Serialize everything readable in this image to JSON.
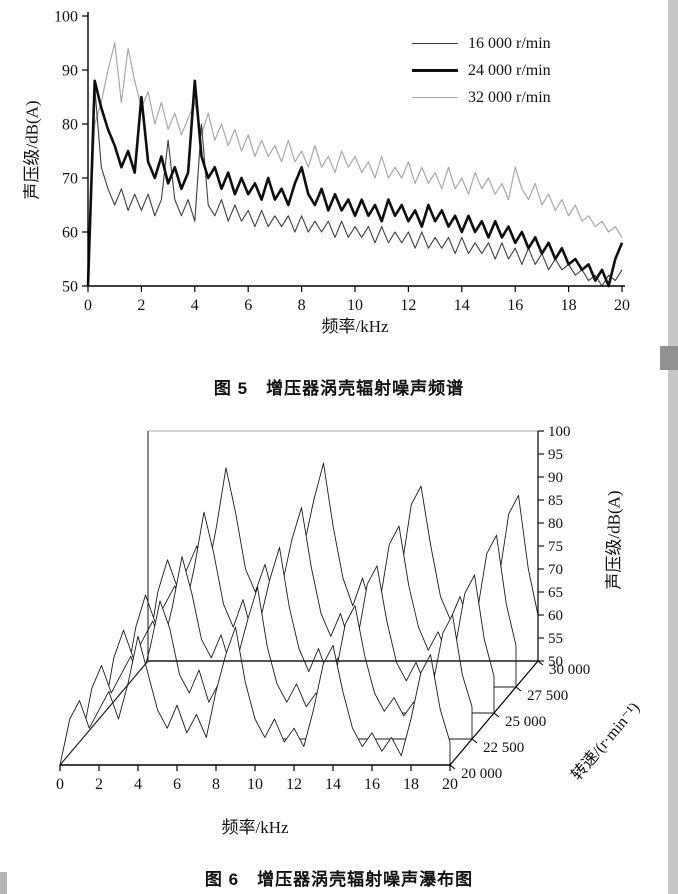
{
  "chart_data": [
    {
      "type": "line",
      "title": "图 5　增压器涡壳辐射噪声频谱",
      "xlabel": "频率/kHz",
      "ylabel": "声压级/dB(A)",
      "xlim": [
        0,
        20
      ],
      "ylim": [
        50,
        100
      ],
      "xticks": [
        0,
        2,
        4,
        6,
        8,
        10,
        12,
        14,
        16,
        18,
        20
      ],
      "yticks": [
        50,
        60,
        70,
        80,
        90,
        100
      ],
      "legend_position": "top-right",
      "x_start": 0,
      "x_step": 0.25,
      "series": [
        {
          "name": "16 000 r/min",
          "color": "#3f3f3f",
          "width": 1.1,
          "values": [
            50,
            87,
            72,
            68,
            65,
            68,
            64,
            67,
            64,
            67,
            63,
            66,
            77,
            66,
            63,
            66,
            62,
            80,
            65,
            63,
            66,
            62,
            65,
            62,
            64,
            61,
            64,
            61,
            63,
            61,
            63,
            60,
            63,
            60,
            62,
            60,
            62,
            59,
            62,
            59,
            61,
            59,
            61,
            58,
            61,
            58,
            60,
            58,
            60,
            57,
            60,
            57,
            59,
            57,
            59,
            56,
            59,
            56,
            58,
            56,
            58,
            55,
            58,
            55,
            57,
            54,
            57,
            54,
            56,
            53,
            55,
            53,
            54,
            52,
            53,
            51,
            52,
            50,
            52,
            51,
            53
          ]
        },
        {
          "name": "24 000 r/min",
          "color": "#0f0f0f",
          "width": 2.6,
          "values": [
            50,
            88,
            83,
            79,
            76,
            72,
            75,
            71,
            85,
            73,
            70,
            74,
            69,
            72,
            68,
            71,
            88,
            74,
            70,
            72,
            68,
            71,
            67,
            70,
            67,
            69,
            66,
            70,
            66,
            68,
            65,
            69,
            72,
            67,
            65,
            68,
            64,
            67,
            64,
            66,
            63,
            66,
            63,
            65,
            62,
            66,
            63,
            65,
            62,
            64,
            61,
            65,
            62,
            64,
            61,
            63,
            60,
            63,
            60,
            62,
            59,
            62,
            59,
            61,
            58,
            60,
            57,
            59,
            56,
            58,
            55,
            57,
            54,
            55,
            53,
            54,
            51,
            53,
            50,
            55,
            58
          ]
        },
        {
          "name": "32 000 r/min",
          "color": "#a8a8a8",
          "width": 1.2,
          "values": [
            52,
            80,
            84,
            90,
            95,
            84,
            94,
            88,
            83,
            86,
            80,
            84,
            79,
            82,
            78,
            81,
            84,
            78,
            82,
            77,
            80,
            76,
            79,
            75,
            78,
            74,
            77,
            74,
            76,
            73,
            77,
            73,
            75,
            72,
            76,
            72,
            74,
            71,
            75,
            72,
            74,
            71,
            73,
            70,
            74,
            70,
            72,
            70,
            73,
            69,
            72,
            69,
            71,
            68,
            72,
            68,
            70,
            67,
            71,
            68,
            70,
            67,
            69,
            66,
            72,
            68,
            66,
            69,
            65,
            67,
            64,
            66,
            63,
            65,
            62,
            63,
            61,
            62,
            60,
            61,
            59
          ]
        }
      ]
    },
    {
      "type": "3d-waterfall",
      "title": "图 6　增压器涡壳辐射噪声瀑布图",
      "xlabel": "频率/kHz",
      "ylabel": "声压级/dB(A)",
      "zlabel": "转速/(r·min⁻¹)",
      "xlim": [
        0,
        20
      ],
      "ylim": [
        50,
        100
      ],
      "xticks": [
        0,
        2,
        4,
        6,
        8,
        10,
        12,
        14,
        16,
        18,
        20
      ],
      "yticks": [
        50,
        55,
        60,
        65,
        70,
        75,
        80,
        85,
        90,
        95,
        100
      ],
      "x_start": 0,
      "x_step": 0.5,
      "series": [
        {
          "speed": "20 000",
          "values": [
            50,
            60,
            64,
            58,
            62,
            66,
            60,
            68,
            78,
            70,
            62,
            58,
            63,
            57,
            61,
            56,
            66,
            74,
            80,
            68,
            60,
            56,
            60,
            55,
            58,
            54,
            62,
            72,
            76,
            66,
            58,
            54,
            57,
            53,
            56,
            52,
            60,
            70,
            74,
            62,
            55
          ]
        },
        {
          "speed": "22 500",
          "values": [
            50,
            61,
            66,
            60,
            64,
            68,
            62,
            70,
            80,
            74,
            64,
            60,
            65,
            58,
            62,
            58,
            68,
            76,
            83,
            70,
            62,
            58,
            62,
            57,
            60,
            56,
            64,
            75,
            79,
            68,
            60,
            56,
            59,
            55,
            58,
            54,
            62,
            73,
            77,
            64,
            57
          ]
        },
        {
          "speed": "25 000",
          "values": [
            50,
            62,
            68,
            62,
            66,
            70,
            64,
            73,
            84,
            76,
            66,
            62,
            67,
            60,
            64,
            59,
            70,
            79,
            86,
            73,
            64,
            59,
            64,
            58,
            62,
            57,
            66,
            78,
            82,
            70,
            61,
            57,
            61,
            56,
            59,
            55,
            64,
            76,
            80,
            66,
            58
          ]
        },
        {
          "speed": "27 500",
          "values": [
            51,
            63,
            70,
            64,
            68,
            72,
            66,
            76,
            88,
            79,
            68,
            63,
            69,
            61,
            66,
            61,
            72,
            82,
            89,
            76,
            66,
            61,
            66,
            59,
            63,
            58,
            68,
            81,
            85,
            72,
            63,
            58,
            62,
            57,
            61,
            56,
            66,
            79,
            83,
            68,
            59
          ]
        },
        {
          "speed": "30 000",
          "values": [
            52,
            65,
            72,
            66,
            70,
            75,
            68,
            79,
            92,
            82,
            70,
            65,
            71,
            63,
            68,
            62,
            75,
            85,
            93,
            79,
            68,
            62,
            68,
            61,
            65,
            60,
            70,
            84,
            88,
            75,
            64,
            59,
            64,
            58,
            62,
            57,
            68,
            82,
            86,
            70,
            60
          ]
        }
      ]
    }
  ]
}
